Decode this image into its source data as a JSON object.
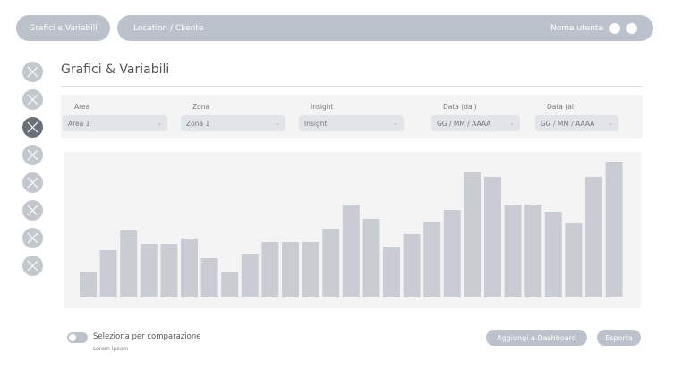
{
  "nav": {
    "section": "Grafici e Variabili",
    "breadcrumb": "Location / Cliente",
    "user": "Nome utente"
  },
  "sidebar": {
    "items": [
      {
        "icon": "close-icon",
        "active": false
      },
      {
        "icon": "close-icon",
        "active": false
      },
      {
        "icon": "close-icon",
        "active": true
      },
      {
        "icon": "close-icon",
        "active": false
      },
      {
        "icon": "close-icon",
        "active": false
      },
      {
        "icon": "close-icon",
        "active": false
      },
      {
        "icon": "close-icon",
        "active": false
      },
      {
        "icon": "close-icon",
        "active": false
      }
    ]
  },
  "page": {
    "title": "Grafici & Variabili"
  },
  "filters": [
    {
      "label": "Area",
      "value": "Area 1"
    },
    {
      "label": "Zona",
      "value": "Zona 1"
    },
    {
      "label": "Insight",
      "value": "Insight"
    },
    {
      "label": "Data (dal)",
      "value": "GG / MM / AAAA"
    },
    {
      "label": "Data (al)",
      "value": "GG / MM / AAAA"
    }
  ],
  "chart_data": {
    "type": "bar",
    "color": "#c9cdd3",
    "values": [
      28,
      53,
      75,
      60,
      60,
      66,
      44,
      28,
      49,
      62,
      62,
      62,
      77,
      104,
      88,
      57,
      71,
      85,
      98,
      140,
      135,
      104,
      104,
      96,
      83,
      135,
      152
    ]
  },
  "footer": {
    "toggle_label": "Seleziona per comparazione",
    "toggle_on": false,
    "sub": "Lorem ipsum",
    "add_dashboard": "Aggiungi a Dashboard",
    "export": "Esporta"
  }
}
